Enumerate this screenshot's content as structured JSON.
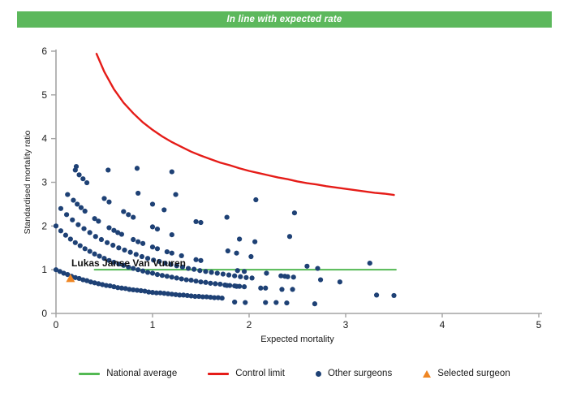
{
  "header": {
    "title": "In line with expected rate",
    "bg_color": "#5cb85c",
    "text_color": "#ffffff"
  },
  "chart_data": {
    "type": "scatter",
    "title": "",
    "xlabel": "Expected mortality",
    "ylabel": "Standardised mortality ratio",
    "xlim": [
      0,
      5
    ],
    "ylim": [
      0,
      6
    ],
    "x_ticks": [
      0,
      1,
      2,
      3,
      4,
      5
    ],
    "y_ticks": [
      0,
      1,
      2,
      3,
      4,
      5,
      6
    ],
    "grid": false,
    "legend_position": "bottom",
    "axis_color": "#a3a3a3",
    "tick_label_color": "#1c1c1c",
    "series": [
      {
        "name": "National average",
        "type": "line",
        "color": "#53b953",
        "points": [
          [
            0.4,
            1
          ],
          [
            3.52,
            1
          ]
        ]
      },
      {
        "name": "Control limit",
        "type": "line",
        "color": "#e51c18",
        "points": [
          [
            0.42,
            5.94
          ],
          [
            0.5,
            5.53
          ],
          [
            0.6,
            5.13
          ],
          [
            0.7,
            4.82
          ],
          [
            0.8,
            4.58
          ],
          [
            0.9,
            4.37
          ],
          [
            1,
            4.2
          ],
          [
            1.1,
            4.05
          ],
          [
            1.2,
            3.92
          ],
          [
            1.3,
            3.81
          ],
          [
            1.4,
            3.7
          ],
          [
            1.5,
            3.61
          ],
          [
            1.6,
            3.53
          ],
          [
            1.7,
            3.45
          ],
          [
            1.8,
            3.39
          ],
          [
            1.9,
            3.32
          ],
          [
            2,
            3.26
          ],
          [
            2.1,
            3.21
          ],
          [
            2.2,
            3.16
          ],
          [
            2.3,
            3.11
          ],
          [
            2.4,
            3.07
          ],
          [
            2.5,
            3.02
          ],
          [
            2.6,
            2.98
          ],
          [
            2.7,
            2.95
          ],
          [
            2.8,
            2.91
          ],
          [
            2.9,
            2.88
          ],
          [
            3,
            2.85
          ],
          [
            3.1,
            2.82
          ],
          [
            3.2,
            2.79
          ],
          [
            3.3,
            2.76
          ],
          [
            3.4,
            2.74
          ],
          [
            3.5,
            2.71
          ]
        ]
      },
      {
        "name": "Other surgeons",
        "type": "scatter",
        "color": "#1e4175",
        "points": [
          [
            0,
            1
          ],
          [
            0.04,
            0.96
          ],
          [
            0.08,
            0.92
          ],
          [
            0.12,
            0.89
          ],
          [
            0.16,
            0.85
          ],
          [
            0.2,
            0.82
          ],
          [
            0.24,
            0.8
          ],
          [
            0.28,
            0.77
          ],
          [
            0.32,
            0.75
          ],
          [
            0.36,
            0.72
          ],
          [
            0.4,
            0.7
          ],
          [
            0.44,
            0.68
          ],
          [
            0.48,
            0.66
          ],
          [
            0.52,
            0.64
          ],
          [
            0.56,
            0.63
          ],
          [
            0.6,
            0.61
          ],
          [
            0.64,
            0.59
          ],
          [
            0.68,
            0.58
          ],
          [
            0.72,
            0.57
          ],
          [
            0.76,
            0.55
          ],
          [
            0.8,
            0.54
          ],
          [
            0.84,
            0.53
          ],
          [
            0.88,
            0.52
          ],
          [
            0.92,
            0.51
          ],
          [
            0.96,
            0.49
          ],
          [
            1,
            0.48
          ],
          [
            1.04,
            0.47
          ],
          [
            1.08,
            0.47
          ],
          [
            1.12,
            0.46
          ],
          [
            1.16,
            0.45
          ],
          [
            1.2,
            0.44
          ],
          [
            1.24,
            0.43
          ],
          [
            1.28,
            0.42
          ],
          [
            1.32,
            0.42
          ],
          [
            1.36,
            0.41
          ],
          [
            1.4,
            0.4
          ],
          [
            1.44,
            0.39
          ],
          [
            1.48,
            0.39
          ],
          [
            1.52,
            0.38
          ],
          [
            1.56,
            0.38
          ],
          [
            1.6,
            0.37
          ],
          [
            1.64,
            0.36
          ],
          [
            1.68,
            0.36
          ],
          [
            1.72,
            0.35
          ],
          [
            0,
            2
          ],
          [
            0.05,
            1.89
          ],
          [
            0.1,
            1.79
          ],
          [
            0.15,
            1.7
          ],
          [
            0.2,
            1.62
          ],
          [
            0.25,
            1.55
          ],
          [
            0.3,
            1.48
          ],
          [
            0.35,
            1.42
          ],
          [
            0.4,
            1.36
          ],
          [
            0.45,
            1.31
          ],
          [
            0.5,
            1.26
          ],
          [
            0.55,
            1.21
          ],
          [
            0.6,
            1.17
          ],
          [
            0.65,
            1.13
          ],
          [
            0.7,
            1.1
          ],
          [
            0.75,
            1.06
          ],
          [
            0.8,
            1.03
          ],
          [
            0.85,
            1
          ],
          [
            0.9,
            0.97
          ],
          [
            0.95,
            0.94
          ],
          [
            1,
            0.92
          ],
          [
            1.05,
            0.89
          ],
          [
            1.1,
            0.87
          ],
          [
            1.15,
            0.85
          ],
          [
            1.2,
            0.83
          ],
          [
            1.25,
            0.81
          ],
          [
            1.3,
            0.79
          ],
          [
            1.35,
            0.77
          ],
          [
            1.4,
            0.76
          ],
          [
            1.45,
            0.74
          ],
          [
            1.5,
            0.72
          ],
          [
            1.55,
            0.71
          ],
          [
            1.6,
            0.69
          ],
          [
            1.65,
            0.68
          ],
          [
            1.7,
            0.67
          ],
          [
            1.75,
            0.65
          ],
          [
            1.8,
            0.64
          ],
          [
            1.85,
            0.63
          ],
          [
            1.9,
            0.62
          ],
          [
            1.95,
            0.61
          ],
          [
            0.05,
            2.4
          ],
          [
            0.11,
            2.26
          ],
          [
            0.17,
            2.14
          ],
          [
            0.23,
            2.03
          ],
          [
            0.29,
            1.94
          ],
          [
            0.35,
            1.85
          ],
          [
            0.41,
            1.76
          ],
          [
            0.47,
            1.69
          ],
          [
            0.53,
            1.62
          ],
          [
            0.59,
            1.56
          ],
          [
            0.65,
            1.5
          ],
          [
            0.71,
            1.45
          ],
          [
            0.77,
            1.4
          ],
          [
            0.83,
            1.35
          ],
          [
            0.89,
            1.3
          ],
          [
            0.95,
            1.26
          ],
          [
            1.01,
            1.22
          ],
          [
            1.07,
            1.19
          ],
          [
            1.13,
            1.15
          ],
          [
            1.19,
            1.12
          ],
          [
            1.25,
            1.09
          ],
          [
            1.31,
            1.06
          ],
          [
            1.37,
            1.03
          ],
          [
            1.43,
            1.01
          ],
          [
            1.49,
            0.98
          ],
          [
            1.55,
            0.96
          ],
          [
            1.61,
            0.94
          ],
          [
            1.67,
            0.92
          ],
          [
            1.73,
            0.9
          ],
          [
            1.79,
            0.88
          ],
          [
            1.85,
            0.86
          ],
          [
            1.91,
            0.84
          ],
          [
            1.97,
            0.82
          ],
          [
            2.03,
            0.81
          ],
          [
            0.18,
            2.59
          ],
          [
            0.22,
            2.5
          ],
          [
            0.26,
            2.42
          ],
          [
            0.3,
            2.34
          ],
          [
            0.4,
            2.17
          ],
          [
            0.44,
            2.11
          ],
          [
            0.55,
            1.96
          ],
          [
            0.6,
            1.9
          ],
          [
            0.64,
            1.85
          ],
          [
            0.68,
            1.81
          ],
          [
            0.8,
            1.69
          ],
          [
            0.85,
            1.64
          ],
          [
            0.9,
            1.6
          ],
          [
            1,
            1.52
          ],
          [
            1.05,
            1.48
          ],
          [
            1.15,
            1.41
          ],
          [
            1.2,
            1.38
          ],
          [
            1.3,
            1.32
          ],
          [
            1.45,
            1.23
          ],
          [
            1.5,
            1.21
          ],
          [
            0.2,
            3.28
          ],
          [
            0.24,
            3.17
          ],
          [
            0.28,
            3.08
          ],
          [
            0.32,
            2.99
          ],
          [
            0.5,
            2.63
          ],
          [
            0.55,
            2.55
          ],
          [
            0.7,
            2.33
          ],
          [
            0.75,
            2.26
          ],
          [
            0.8,
            2.2
          ],
          [
            1,
            1.98
          ],
          [
            1.05,
            1.93
          ],
          [
            1.2,
            1.8
          ],
          [
            0.12,
            2.72
          ],
          [
            0.21,
            3.36
          ],
          [
            0.54,
            3.28
          ],
          [
            0.84,
            3.32
          ],
          [
            1.2,
            3.24
          ],
          [
            0.85,
            2.75
          ],
          [
            1.24,
            2.72
          ],
          [
            1,
            2.5
          ],
          [
            1.12,
            2.37
          ],
          [
            1.45,
            2.1
          ],
          [
            1.5,
            2.08
          ],
          [
            1.77,
            2.2
          ],
          [
            2.07,
            2.6
          ],
          [
            2.47,
            2.3
          ],
          [
            1.9,
            1.7
          ],
          [
            2.06,
            1.64
          ],
          [
            2.42,
            1.76
          ],
          [
            1.78,
            1.43
          ],
          [
            1.87,
            1.38
          ],
          [
            2.02,
            1.3
          ],
          [
            2.6,
            1.08
          ],
          [
            2.71,
            1.03
          ],
          [
            3.25,
            1.15
          ],
          [
            1.88,
            0.98
          ],
          [
            1.95,
            0.96
          ],
          [
            2.18,
            0.92
          ],
          [
            2.33,
            0.86
          ],
          [
            2.37,
            0.85
          ],
          [
            2.4,
            0.84
          ],
          [
            2.46,
            0.83
          ],
          [
            2.74,
            0.77
          ],
          [
            2.94,
            0.72
          ],
          [
            1.77,
            0.64
          ],
          [
            1.87,
            0.62
          ],
          [
            2.12,
            0.58
          ],
          [
            2.17,
            0.58
          ],
          [
            2.34,
            0.55
          ],
          [
            2.45,
            0.55
          ],
          [
            3.32,
            0.42
          ],
          [
            3.5,
            0.41
          ],
          [
            1.85,
            0.26
          ],
          [
            1.96,
            0.25
          ],
          [
            2.17,
            0.25
          ],
          [
            2.28,
            0.25
          ],
          [
            2.39,
            0.24
          ],
          [
            2.68,
            0.22
          ]
        ]
      },
      {
        "name": "Selected surgeon",
        "type": "scatter-triangle",
        "color": "#ef8623",
        "points": [
          [
            0.15,
            0.8
          ]
        ],
        "label": "Lukas Janse Van Vuuren",
        "label_color": "#111111",
        "label_anchor": [
          0.16,
          1.15
        ]
      }
    ]
  },
  "legend": {
    "items": [
      {
        "label": "National average",
        "marker": "line",
        "color": "#53b953"
      },
      {
        "label": "Control limit",
        "marker": "line",
        "color": "#e51c18"
      },
      {
        "label": "Other surgeons",
        "marker": "dot",
        "color": "#1e4175"
      },
      {
        "label": "Selected surgeon",
        "marker": "triangle",
        "color": "#ef8623"
      }
    ]
  }
}
